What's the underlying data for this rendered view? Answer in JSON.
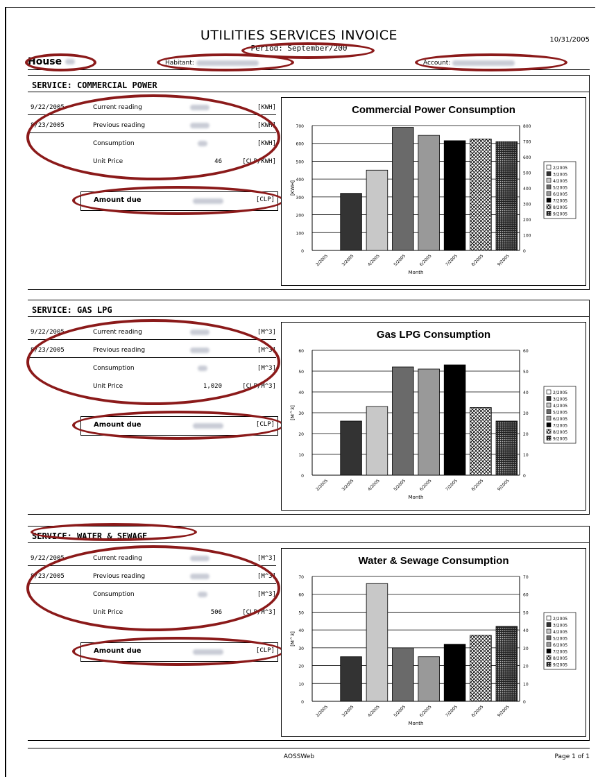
{
  "header": {
    "title": "UTILITIES SERVICES INVOICE",
    "date": "10/31/2005",
    "period": "Period: September/200",
    "house_label": "House",
    "habitant_label": "Habitant",
    "account_label": "Account"
  },
  "services": [
    {
      "title": "SERVICE: COMMERCIAL POWER",
      "rows": [
        {
          "date": "9/22/2005",
          "label": "Current reading",
          "unit": "[KWH]"
        },
        {
          "date": "8/23/2005",
          "label": "Previous reading",
          "unit": "[KWH]"
        },
        {
          "date": "",
          "label": "Consumption",
          "unit": "[KWH]"
        },
        {
          "date": "",
          "label": "Unit Price",
          "value": "46",
          "unit": "[CLP/KWH]"
        }
      ],
      "amount_label": "Amount due",
      "amount_unit": "[CLP]"
    },
    {
      "title": "SERVICE: GAS LPG",
      "rows": [
        {
          "date": "9/22/2005",
          "label": "Current reading",
          "unit": "[M^3]"
        },
        {
          "date": "8/23/2005",
          "label": "Previous reading",
          "unit": "[M^3]"
        },
        {
          "date": "",
          "label": "Consumption",
          "unit": "[M^3]"
        },
        {
          "date": "",
          "label": "Unit Price",
          "value": "1,020",
          "unit": "[CLP/M^3]"
        }
      ],
      "amount_label": "Amount due",
      "amount_unit": "[CLP]"
    },
    {
      "title": "SERVICE: WATER & SEWAGE",
      "rows": [
        {
          "date": "9/22/2005",
          "label": "Current reading",
          "unit": "[M^3]"
        },
        {
          "date": "8/23/2005",
          "label": "Previous reading",
          "unit": "[M^3]"
        },
        {
          "date": "",
          "label": "Consumption",
          "unit": "[M^3]"
        },
        {
          "date": "",
          "label": "Unit Price",
          "value": "506",
          "unit": "[CLP/M^3]"
        }
      ],
      "amount_label": "Amount due",
      "amount_unit": "[CLP]"
    }
  ],
  "chart_data": [
    {
      "type": "bar",
      "title": "Commercial Power Consumption",
      "xlabel": "Month",
      "ylabel": "[KWH]",
      "categories": [
        "2/2005",
        "3/2005",
        "4/2005",
        "5/2005",
        "6/2005",
        "7/2005",
        "8/2005",
        "9/2005"
      ],
      "values": [
        0,
        320,
        450,
        690,
        645,
        615,
        625,
        610
      ],
      "ylim": [
        0,
        700
      ],
      "yticks": [
        0,
        100,
        200,
        300,
        400,
        500,
        600,
        700
      ],
      "right_ylim": [
        0,
        800
      ],
      "right_yticks": [
        0,
        100,
        200,
        300,
        400,
        500,
        600,
        700,
        800
      ],
      "legend": [
        "2/2005",
        "3/2005",
        "4/2005",
        "5/2005",
        "6/2005",
        "7/2005",
        "8/2005",
        "9/2005"
      ],
      "legend_position": "right"
    },
    {
      "type": "bar",
      "title": "Gas LPG Consumption",
      "xlabel": "Month",
      "ylabel": "[M^3]",
      "categories": [
        "2/2005",
        "3/2005",
        "4/2005",
        "5/2005",
        "6/2005",
        "7/2005",
        "8/2005",
        "9/2005"
      ],
      "values": [
        0,
        26,
        33,
        52,
        51,
        53,
        32.5,
        26
      ],
      "ylim": [
        0,
        60
      ],
      "yticks": [
        0,
        10,
        20,
        30,
        40,
        50,
        60
      ],
      "right_ylim": [
        0,
        60
      ],
      "right_yticks": [
        0,
        10,
        20,
        30,
        40,
        50,
        60
      ],
      "legend": [
        "2/2005",
        "3/2005",
        "4/2005",
        "5/2005",
        "6/2005",
        "7/2005",
        "8/2005",
        "9/2005"
      ],
      "legend_position": "right"
    },
    {
      "type": "bar",
      "title": "Water & Sewage Consumption",
      "xlabel": "Month",
      "ylabel": "[M^3]",
      "categories": [
        "2/2005",
        "3/2005",
        "4/2005",
        "5/2005",
        "6/2005",
        "7/2005",
        "8/2005",
        "9/2005"
      ],
      "values": [
        0,
        25,
        66,
        30,
        25,
        32,
        37,
        42
      ],
      "ylim": [
        0,
        70
      ],
      "yticks": [
        0,
        10,
        20,
        30,
        40,
        50,
        60,
        70
      ],
      "right_ylim": [
        0,
        70
      ],
      "right_yticks": [
        0,
        10,
        20,
        30,
        40,
        50,
        60,
        70
      ],
      "legend": [
        "2/2005",
        "3/2005",
        "4/2005",
        "5/2005",
        "6/2005",
        "7/2005",
        "8/2005",
        "9/2005"
      ],
      "legend_position": "right"
    }
  ],
  "footer": {
    "center": "AOSSWeb",
    "page": "Page 1 of 1"
  }
}
